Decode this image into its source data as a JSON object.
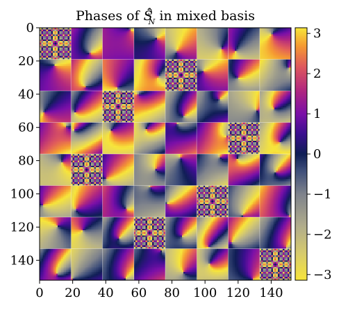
{
  "chart_data": {
    "type": "heatmap",
    "title": "Phases of Ŝ³_N in mixed basis",
    "title_parts": {
      "prefix": "Phases of ",
      "symbol": "Ŝ",
      "sup": "3",
      "sub": "N",
      "suffix": " in mixed basis"
    },
    "xlabel": "",
    "ylabel": "",
    "size": [
      152,
      152
    ],
    "blocks": 8,
    "block_size": 19,
    "xlim": [
      0,
      152
    ],
    "ylim": [
      152,
      0
    ],
    "x_ticks": [
      0,
      20,
      40,
      60,
      80,
      100,
      120,
      140
    ],
    "x_tick_labels": [
      "0",
      "20",
      "40",
      "60",
      "80",
      "100",
      "120",
      "140"
    ],
    "y_ticks": [
      0,
      20,
      40,
      60,
      80,
      100,
      120,
      140
    ],
    "y_tick_labels": [
      "0",
      "20",
      "40",
      "60",
      "80",
      "100",
      "120",
      "140"
    ],
    "value_range": [
      -3.14159,
      3.14159
    ],
    "colorbar": {
      "ticks": [
        3,
        2,
        1,
        0,
        -1,
        -2,
        -3
      ],
      "tick_labels": [
        "3",
        "2",
        "1",
        "0",
        "−1",
        "−2",
        "−3"
      ],
      "colormap": "cet_cyclic_phase"
    },
    "diagonal_block_columns": [
      0,
      1,
      2,
      3,
      4,
      5,
      6,
      7
    ],
    "diagonal_block_rows": [
      0,
      4,
      2,
      6,
      1,
      5,
      3,
      7
    ],
    "colormap_stops": [
      {
        "value": -3.14159,
        "color": "#f7e53a"
      },
      {
        "value": -2.5,
        "color": "#d8cc6c"
      },
      {
        "value": -1.8,
        "color": "#b1ad8c"
      },
      {
        "value": -1.0,
        "color": "#7f838c"
      },
      {
        "value": -0.4,
        "color": "#3d4d79"
      },
      {
        "value": 0.0,
        "color": "#0f1e55"
      },
      {
        "value": 0.5,
        "color": "#3b0f8f"
      },
      {
        "value": 1.0,
        "color": "#7a0fa8"
      },
      {
        "value": 1.6,
        "color": "#b2287f"
      },
      {
        "value": 2.2,
        "color": "#e05a5c"
      },
      {
        "value": 2.7,
        "color": "#f59a32"
      },
      {
        "value": 3.14159,
        "color": "#f7e53a"
      }
    ]
  }
}
